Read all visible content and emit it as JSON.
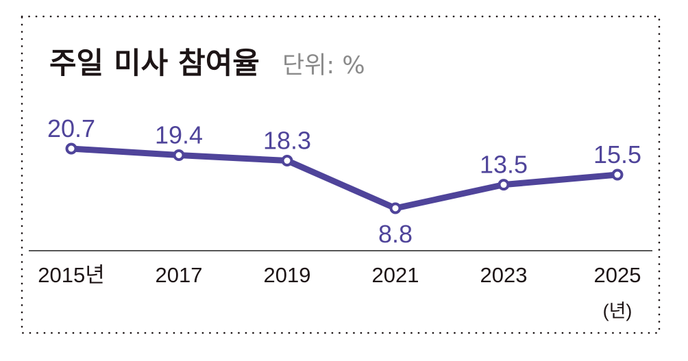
{
  "chart_data": {
    "type": "line",
    "title": "주일 미사 참여율",
    "unit_label": "단위: %",
    "xlabel": "(년)",
    "ylabel": "",
    "categories": [
      "2015",
      "2017",
      "2019",
      "2021",
      "2023",
      "2025"
    ],
    "tick_labels": [
      "2015년",
      "2017",
      "2019",
      "2021",
      "2023",
      "2025"
    ],
    "series": [
      {
        "name": "주일 미사 참여율",
        "values": [
          20.7,
          19.4,
          18.3,
          8.8,
          13.5,
          15.5
        ],
        "data_labels": [
          "20.7",
          "19.4",
          "18.3",
          "8.8",
          "13.5",
          "15.5"
        ],
        "color": "#4f449a"
      }
    ],
    "ylim": [
      0,
      25
    ],
    "grid": false,
    "legend": "none"
  },
  "colors": {
    "line": "#4f449a",
    "title": "#1d1516",
    "unit": "#8a8a8a",
    "axis": "#555555",
    "border": "#1d1516"
  }
}
